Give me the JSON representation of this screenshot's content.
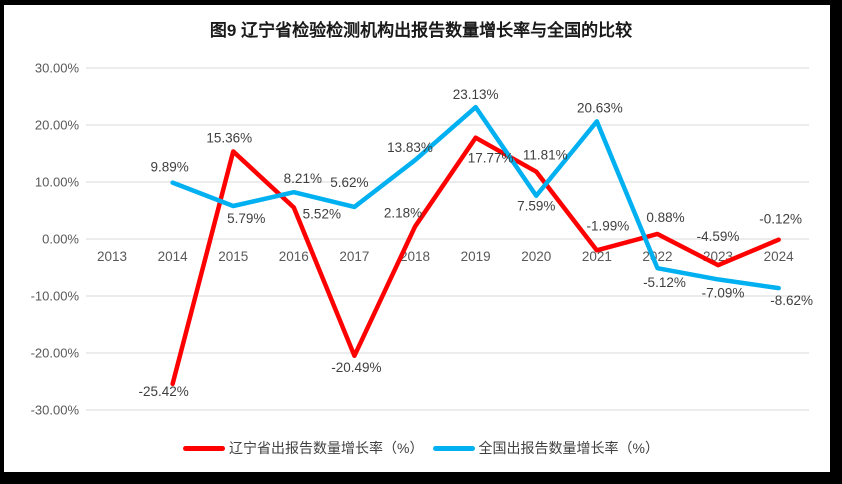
{
  "title": "图9  辽宁省检验检测机构出报告数量增长率与全国的比较",
  "frame": {
    "border_color": "#000000",
    "panel_background": "#ffffff"
  },
  "chart_data": {
    "type": "line",
    "title": "图9  辽宁省检验检测机构出报告数量增长率与全国的比较",
    "categories": [
      "2013",
      "2014",
      "2015",
      "2016",
      "2017",
      "2018",
      "2019",
      "2020",
      "2021",
      "2022",
      "2023",
      "2024"
    ],
    "series": [
      {
        "name": "辽宁省出报告数量增长率（%）",
        "color": "#ff0000",
        "values": [
          null,
          -25.42,
          15.36,
          5.52,
          -20.49,
          2.18,
          17.77,
          11.81,
          -1.99,
          0.88,
          -4.59,
          -0.12
        ],
        "data_labels": [
          null,
          "-25.42%",
          "15.36%",
          "5.52%",
          "-20.49%",
          "2.18%",
          "17.77%",
          "11.81%",
          "-1.99%",
          "0.88%",
          "-4.59%",
          "-0.12%"
        ],
        "label_placements": [
          null,
          "below",
          "above",
          "below",
          "below",
          "above",
          "below",
          "above",
          "above",
          "above",
          "above",
          "above"
        ]
      },
      {
        "name": "全国出报告数量增长率（%）",
        "color": "#00b0f0",
        "values": [
          null,
          9.89,
          5.79,
          8.21,
          5.62,
          13.83,
          23.13,
          7.59,
          20.63,
          -5.12,
          -7.09,
          -8.62
        ],
        "data_labels": [
          null,
          "9.89%",
          "5.79%",
          "8.21%",
          "5.62%",
          "13.83%",
          "23.13%",
          "7.59%",
          "20.63%",
          "-5.12%",
          "-7.09%",
          "-8.62%"
        ],
        "label_placements": [
          null,
          "above",
          "below",
          "above",
          "above",
          "above",
          "above",
          "below",
          "above",
          "below",
          "below",
          "below"
        ]
      }
    ],
    "y_axis": {
      "min": -30,
      "max": 30,
      "step": 10,
      "tick_values": [
        30,
        20,
        10,
        0,
        -10,
        -20,
        -30
      ],
      "tick_labels": [
        "30.00%",
        "20.00%",
        "10.00%",
        "0.00%",
        "-10.00%",
        "-20.00%",
        "-30.00%"
      ]
    },
    "grid": true,
    "grid_color": "#d9d9d9",
    "axis_text_color": "#595959",
    "data_label_color": "#3f3f3f",
    "legend_position": "bottom",
    "x_labels_at_zero_line": true
  }
}
